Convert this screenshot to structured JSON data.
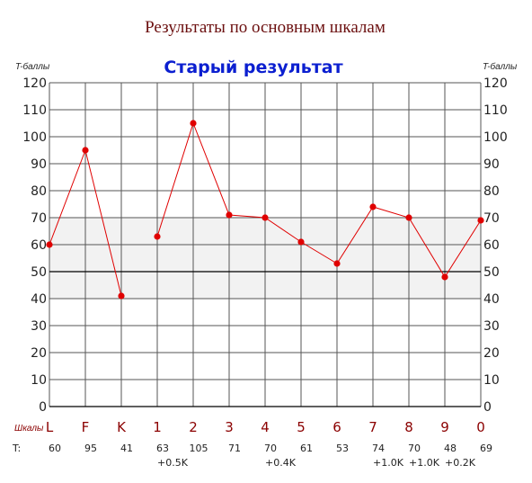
{
  "chart_data": {
    "type": "line",
    "title": "Результаты по основным шкалам",
    "subtitle": "Старый результат",
    "ylabel_left": "T-баллы",
    "ylabel_right": "T-баллы",
    "ylim": [
      0,
      120
    ],
    "yticks": [
      0,
      10,
      20,
      30,
      40,
      50,
      60,
      70,
      80,
      90,
      100,
      110,
      120
    ],
    "normal_band": [
      40,
      70
    ],
    "reference_line": 50,
    "scales_caption": "Шкалы",
    "t_caption": "T:",
    "categories": [
      "L",
      "F",
      "K",
      "1",
      "2",
      "3",
      "4",
      "5",
      "6",
      "7",
      "8",
      "9",
      "0"
    ],
    "values": [
      60,
      95,
      41,
      63,
      105,
      71,
      70,
      61,
      53,
      74,
      70,
      48,
      69
    ],
    "k_corrections": [
      "",
      "",
      "",
      "+0.5K",
      "",
      "",
      "+0.4K",
      "",
      "",
      "+1.0K",
      "+1.0K",
      "+0.2K",
      ""
    ],
    "segments": [
      [
        0,
        2
      ],
      [
        3,
        12
      ]
    ],
    "grid": true,
    "colors": {
      "line": "#e00000",
      "band": "#f2f2f2",
      "grid": "#555555",
      "reference": "#000000",
      "title": "#6b0f0f",
      "subtitle": "#0b1fd0"
    }
  }
}
